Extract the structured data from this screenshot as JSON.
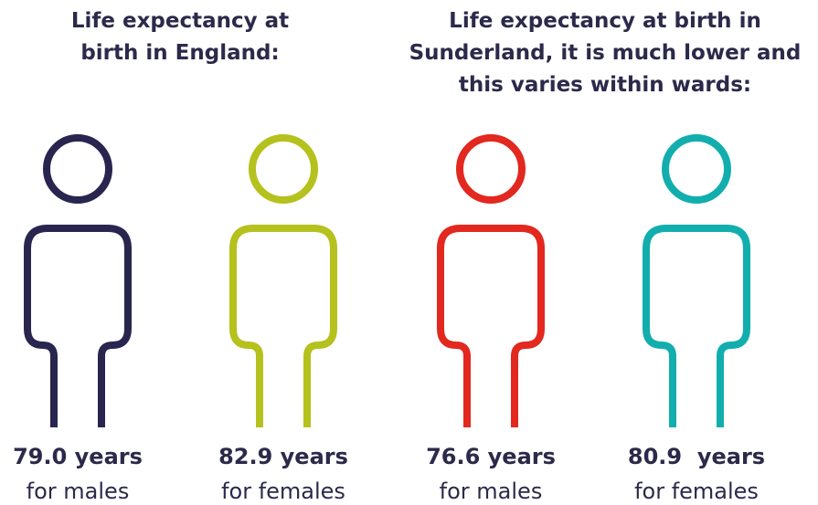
{
  "headings": [
    {
      "lines": [
        "Life expectancy at",
        "birth in England:"
      ]
    },
    {
      "lines": [
        "Life expectancy at birth in",
        "Sunderland, it is much lower and",
        "this varies within wards:"
      ]
    }
  ],
  "figures": [
    {
      "value": "79.0 years",
      "label": "for males",
      "color": "#28264f"
    },
    {
      "value": "82.9 years",
      "label": "for females",
      "color": "#b5c11d"
    },
    {
      "value": "76.6 years",
      "label": "for males",
      "color": "#e2281f"
    },
    {
      "value": "80.9  years",
      "label": "for females",
      "color": "#12aeae"
    }
  ]
}
